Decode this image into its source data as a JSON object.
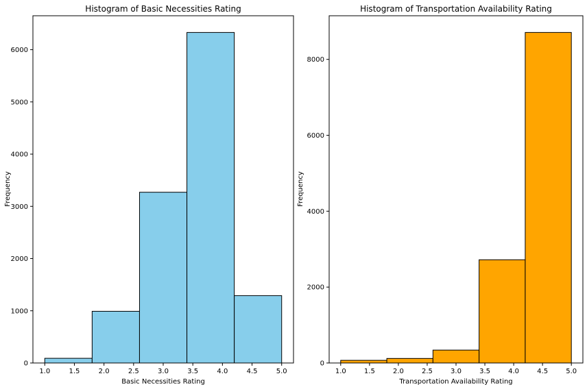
{
  "chart_data": [
    {
      "type": "bar",
      "title": "Histogram of Basic Necessities Rating",
      "xlabel": "Basic Necessities Rating",
      "ylabel": "Frequency",
      "bin_edges": [
        1.0,
        1.8,
        2.6,
        3.4,
        4.2,
        5.0
      ],
      "values": [
        90,
        990,
        3270,
        6330,
        1290
      ],
      "xticks": [
        "1.0",
        "1.5",
        "2.0",
        "2.5",
        "3.0",
        "3.5",
        "4.0",
        "4.5",
        "5.0"
      ],
      "yticks": [
        "0",
        "1000",
        "2000",
        "3000",
        "4000",
        "5000",
        "6000"
      ],
      "xlim": [
        0.8,
        5.2
      ],
      "ylim": [
        0,
        6650
      ],
      "bar_color": "#87CEEB",
      "edge_color": "#000000",
      "grid": false
    },
    {
      "type": "bar",
      "title": "Histogram of Transportation Availability Rating",
      "xlabel": "Transportation Availability Rating",
      "ylabel": "Frequency",
      "bin_edges": [
        1.0,
        1.8,
        2.6,
        3.4,
        4.2,
        5.0
      ],
      "values": [
        70,
        120,
        340,
        2720,
        8710
      ],
      "xticks": [
        "1.0",
        "1.5",
        "2.0",
        "2.5",
        "3.0",
        "3.5",
        "4.0",
        "4.5",
        "5.0"
      ],
      "yticks": [
        "0",
        "2000",
        "4000",
        "6000",
        "8000"
      ],
      "xlim": [
        0.8,
        5.2
      ],
      "ylim": [
        0,
        9150
      ],
      "bar_color": "#FFA500",
      "edge_color": "#000000",
      "grid": false
    }
  ]
}
